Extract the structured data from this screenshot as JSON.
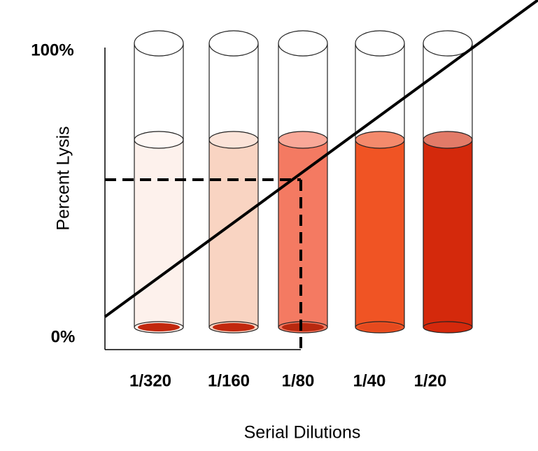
{
  "y_axis": {
    "title": "Percent Lysis",
    "labels": [
      "100%",
      "0%"
    ]
  },
  "x_axis": {
    "title": "Serial Dilutions",
    "labels": [
      "1/320",
      "1/160",
      "1/80",
      "1/40",
      "1/20"
    ]
  }
}
